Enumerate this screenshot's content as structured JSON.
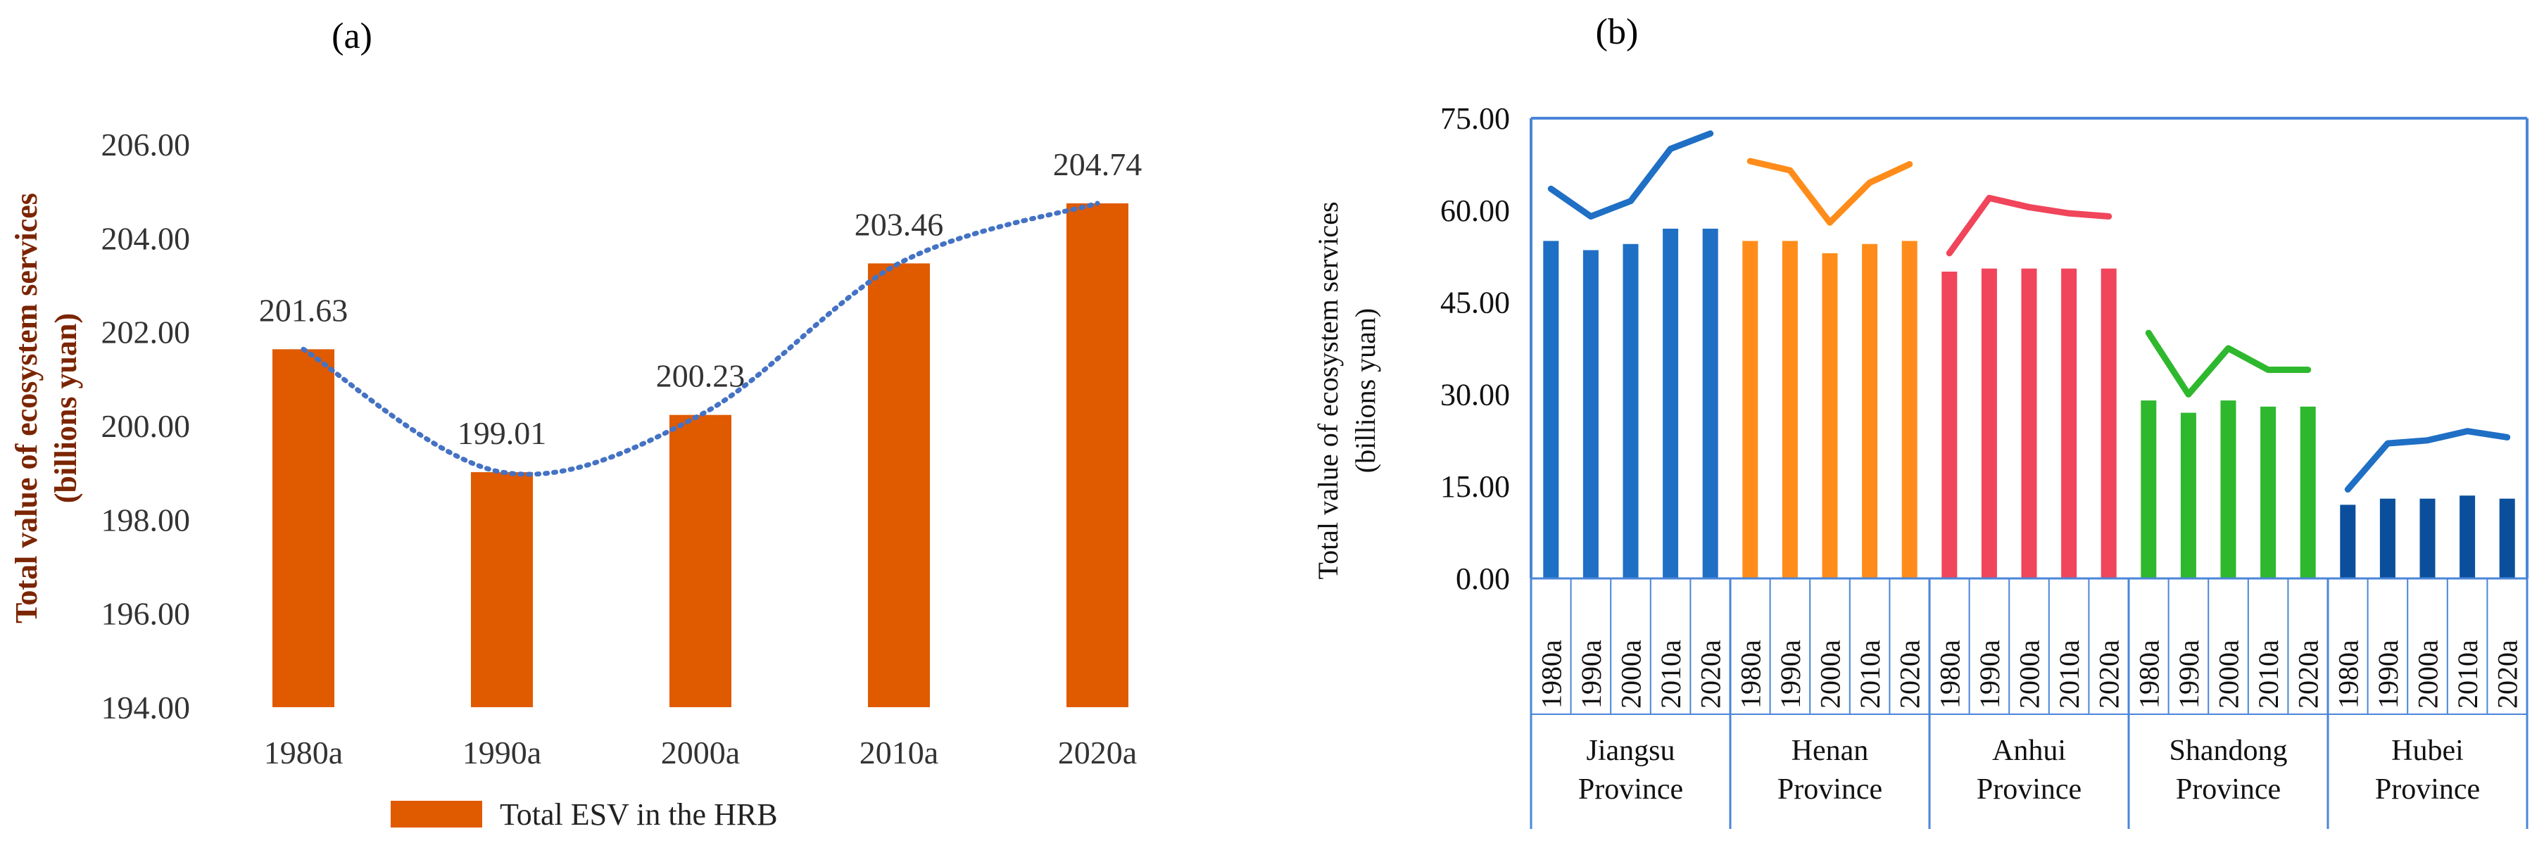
{
  "chart_data": [
    {
      "panel_label": "(a)",
      "type": "bar",
      "categories": [
        "1980a",
        "1990a",
        "2000a",
        "2010a",
        "2020a"
      ],
      "values": [
        201.63,
        199.01,
        200.23,
        203.46,
        204.74
      ],
      "data_labels": [
        "201.63",
        "199.01",
        "200.23",
        "203.46",
        "204.74"
      ],
      "ylabel": "Total value of ecosystem services",
      "ylabel2": "(billions yuan)",
      "ylim": [
        194,
        206
      ],
      "yticks": [
        "194.00",
        "196.00",
        "198.00",
        "200.00",
        "202.00",
        "204.00",
        "206.00"
      ],
      "legend": "Total ESV in the HRB",
      "trendline": "polynomial dotted",
      "colors": {
        "bar": "#E05A00",
        "trend": "#4472C4"
      }
    },
    {
      "panel_label": "(b)",
      "type": "bar",
      "ylabel": "Total value of ecosystem services",
      "ylabel2": "(billions yuan)",
      "ylim": [
        0,
        75
      ],
      "yticks": [
        "0.00",
        "15.00",
        "30.00",
        "45.00",
        "60.00",
        "75.00"
      ],
      "years": [
        "1980a",
        "1990a",
        "2000a",
        "2010a",
        "2020a"
      ],
      "groups": [
        {
          "name": [
            "Jiangsu",
            "Province"
          ],
          "color": "#1F6FC5",
          "line_color": "#1F6FC5",
          "values": [
            55.0,
            53.5,
            54.5,
            57.0,
            57.0
          ],
          "line": [
            63.5,
            59.0,
            61.5,
            70.0,
            72.5
          ]
        },
        {
          "name": [
            "Henan",
            "Province"
          ],
          "color": "#FF8C1A",
          "line_color": "#FF8C1A",
          "values": [
            55.0,
            55.0,
            53.0,
            54.5,
            55.0
          ],
          "line": [
            68.0,
            66.5,
            58.0,
            64.5,
            67.5
          ]
        },
        {
          "name": [
            "Anhui",
            "Province"
          ],
          "color": "#F0455A",
          "line_color": "#F0455A",
          "values": [
            50.0,
            50.5,
            50.5,
            50.5,
            50.5
          ],
          "line": [
            53.0,
            62.0,
            60.5,
            59.5,
            59.0
          ]
        },
        {
          "name": [
            "Shandong",
            "Province"
          ],
          "color": "#2EB82E",
          "line_color": "#2EB82E",
          "values": [
            29.0,
            27.0,
            29.0,
            28.0,
            28.0
          ],
          "line": [
            40.0,
            30.0,
            37.5,
            34.0,
            34.0
          ]
        },
        {
          "name": [
            "Hubei",
            "Province"
          ],
          "color": "#0B4F9C",
          "line_color": "#1F6FC5",
          "values": [
            12.0,
            13.0,
            13.0,
            13.5,
            13.0
          ],
          "line": [
            14.5,
            22.0,
            22.5,
            24.0,
            23.0
          ]
        }
      ]
    }
  ]
}
